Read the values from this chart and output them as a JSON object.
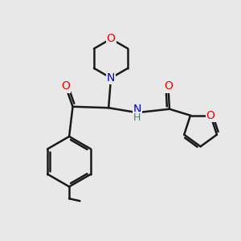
{
  "background_color": "#e8e8e8",
  "bond_color": "#1a1a1a",
  "atom_colors": {
    "O": "#ff0000",
    "N": "#0000cc",
    "H": "#009999",
    "C": "#1a1a1a"
  },
  "bond_width": 1.8,
  "dbo": 0.09,
  "figsize": [
    3.0,
    3.0
  ],
  "dpi": 100
}
